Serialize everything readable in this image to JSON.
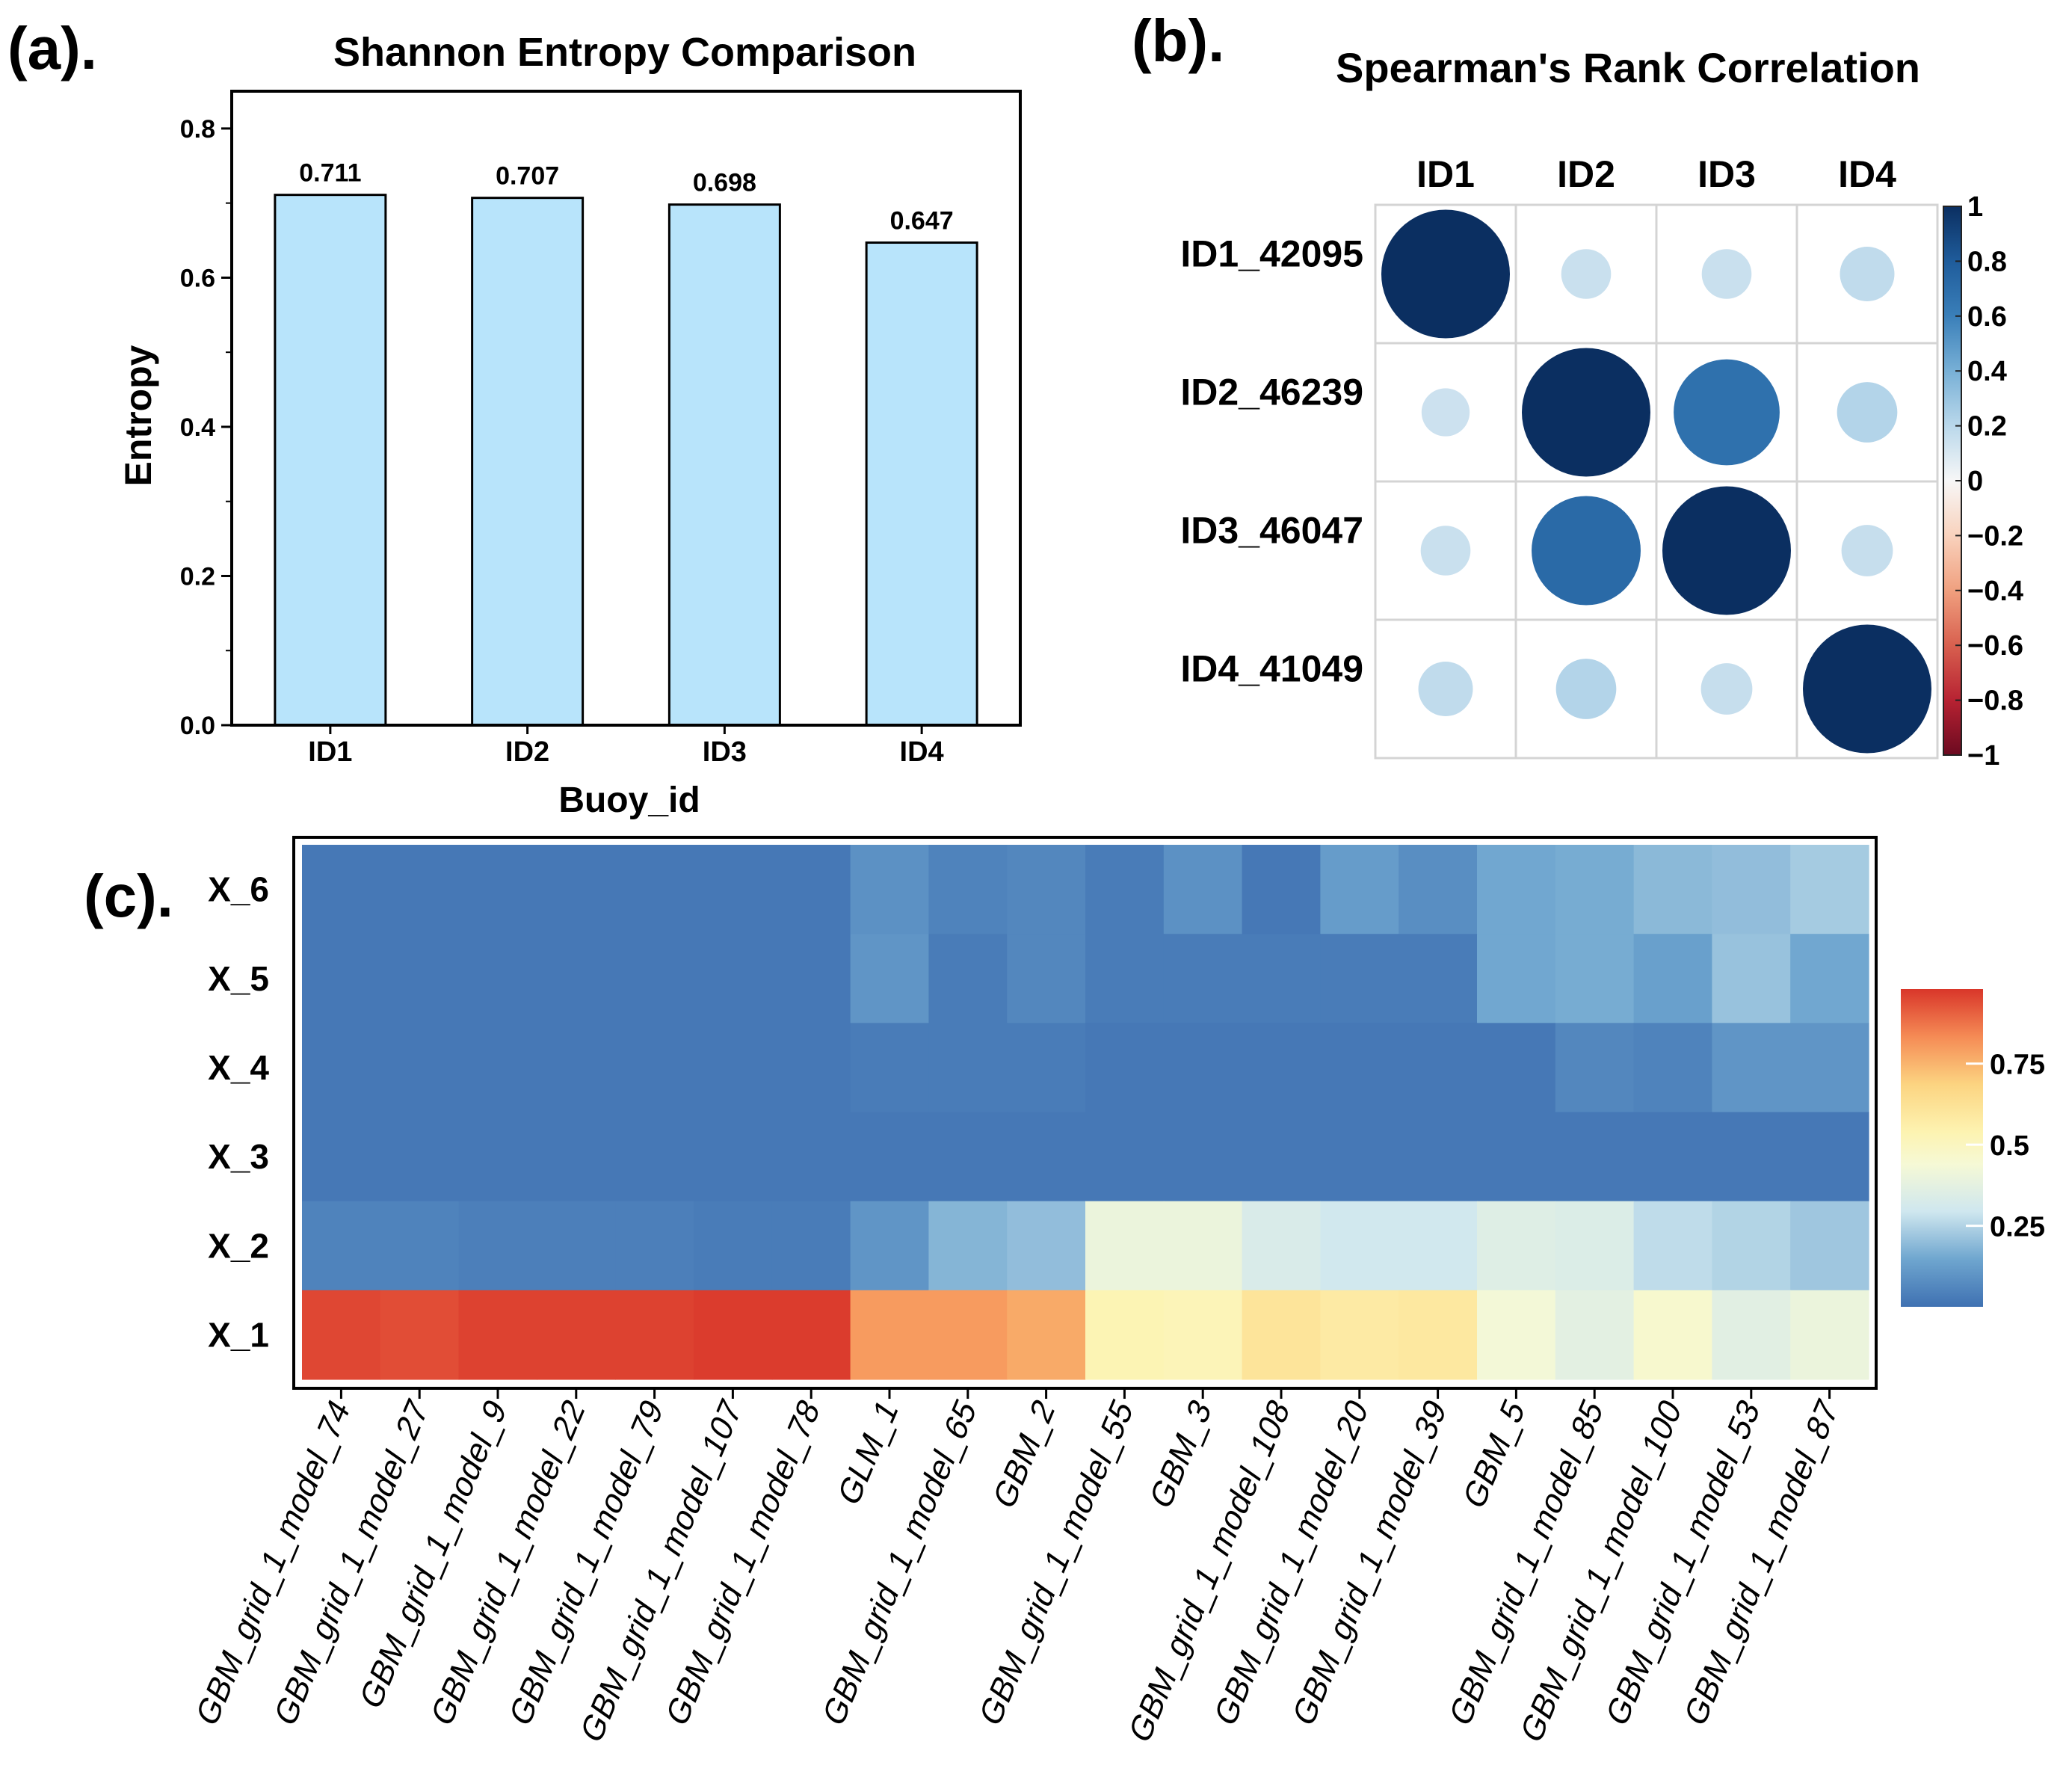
{
  "chart_data": [
    {
      "panel_label": "(a).",
      "type": "bar",
      "title": "Shannon Entropy Comparison",
      "xlabel": "Buoy_id",
      "ylabel": "Entropy",
      "categories": [
        "ID1",
        "ID2",
        "ID3",
        "ID4"
      ],
      "values": [
        0.711,
        0.707,
        0.698,
        0.647
      ],
      "value_labels": [
        "0.711",
        "0.707",
        "0.698",
        "0.647"
      ],
      "ylim": [
        0,
        0.85
      ],
      "yticks": [
        0.0,
        0.2,
        0.4,
        0.6,
        0.8
      ],
      "ytick_labels": [
        "0.0",
        "0.2",
        "0.4",
        "0.6",
        "0.8"
      ],
      "bar_color": "#b8e4fb",
      "edge_color": "#000000"
    },
    {
      "panel_label": "(b).",
      "type": "heatmap",
      "title": "Spearman's Rank Correlation",
      "columns": [
        "ID1",
        "ID2",
        "ID3",
        "ID4"
      ],
      "rows": [
        "ID1_42095",
        "ID2_46239",
        "ID3_46047",
        "ID4_41049"
      ],
      "values": [
        [
          1.0,
          0.15,
          0.15,
          0.18
        ],
        [
          0.14,
          1.0,
          0.68,
          0.22
        ],
        [
          0.15,
          0.72,
          1.0,
          0.16
        ],
        [
          0.18,
          0.22,
          0.16,
          1.0
        ]
      ],
      "marker": "circle",
      "colorbar": {
        "range": [
          -1,
          1
        ],
        "ticks": [
          "1",
          "0.8",
          "0.6",
          "0.4",
          "0.2",
          "0",
          "−0.2",
          "−0.4",
          "−0.6",
          "−0.8",
          "−1"
        ]
      }
    },
    {
      "panel_label": "(c).",
      "type": "heatmap",
      "rows": [
        "X_6",
        "X_5",
        "X_4",
        "X_3",
        "X_2",
        "X_1"
      ],
      "columns": [
        "GBM_grid_1_model_74",
        "GBM_grid_1_model_27",
        "GBM_grid_1_model_9",
        "GBM_grid_1_model_22",
        "GBM_grid_1_model_79",
        "GBM_grid_1_model_107",
        "GBM_grid_1_model_78",
        "GLM_1",
        "GBM_grid_1_model_65",
        "GBM_2",
        "GBM_grid_1_model_55",
        "GBM_3",
        "GBM_grid_1_model_108",
        "GBM_grid_1_model_20",
        "GBM_grid_1_model_39",
        "GBM_5",
        "GBM_grid_1_model_85",
        "GBM_grid_1_model_100",
        "GBM_grid_1_model_53",
        "GBM_grid_1_model_87"
      ],
      "values": [
        [
          0.02,
          0.02,
          0.02,
          0.02,
          0.02,
          0.02,
          0.02,
          0.09,
          0.05,
          0.06,
          0.03,
          0.09,
          0.02,
          0.12,
          0.08,
          0.15,
          0.16,
          0.19,
          0.2,
          0.23
        ],
        [
          0.02,
          0.02,
          0.02,
          0.02,
          0.02,
          0.02,
          0.02,
          0.1,
          0.03,
          0.06,
          0.03,
          0.03,
          0.03,
          0.03,
          0.03,
          0.15,
          0.16,
          0.13,
          0.21,
          0.15
        ],
        [
          0.02,
          0.02,
          0.02,
          0.02,
          0.02,
          0.02,
          0.02,
          0.03,
          0.03,
          0.03,
          0.02,
          0.02,
          0.02,
          0.02,
          0.02,
          0.02,
          0.06,
          0.05,
          0.1,
          0.1
        ],
        [
          0.02,
          0.02,
          0.02,
          0.02,
          0.02,
          0.02,
          0.02,
          0.02,
          0.02,
          0.02,
          0.02,
          0.02,
          0.02,
          0.02,
          0.02,
          0.02,
          0.02,
          0.02,
          0.02,
          0.02
        ],
        [
          0.05,
          0.05,
          0.04,
          0.04,
          0.04,
          0.03,
          0.03,
          0.1,
          0.18,
          0.2,
          0.4,
          0.4,
          0.33,
          0.3,
          0.3,
          0.35,
          0.34,
          0.27,
          0.25,
          0.22
        ],
        [
          0.95,
          0.94,
          0.96,
          0.96,
          0.96,
          0.97,
          0.97,
          0.8,
          0.8,
          0.77,
          0.53,
          0.52,
          0.61,
          0.58,
          0.59,
          0.43,
          0.37,
          0.46,
          0.36,
          0.4
        ]
      ],
      "colorbar": {
        "range": [
          0.0,
          0.98
        ],
        "ticks": [
          0.25,
          0.5,
          0.75
        ],
        "tick_labels": [
          "0.25",
          "0.5",
          "0.75"
        ]
      }
    }
  ]
}
